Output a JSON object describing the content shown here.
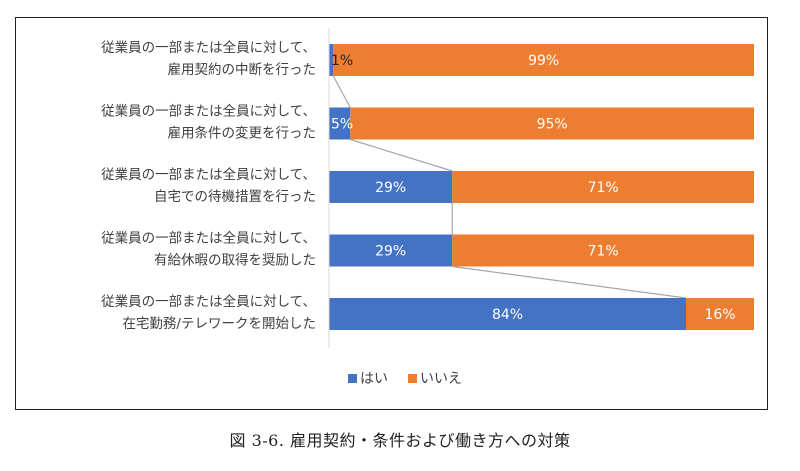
{
  "caption": "図 3-6.  雇用契約・条件および働き方への対策",
  "colors": {
    "yes": "#4472C4",
    "no": "#ED7D31",
    "connector": "#A6A6A6",
    "axis": "#D9D9D9"
  },
  "chart_data": {
    "type": "bar",
    "orientation": "horizontal",
    "stacked": "percent",
    "categories": [
      [
        "従業員の一部または全員に対して、",
        "雇用契約の中断を行った"
      ],
      [
        "従業員の一部または全員に対して、",
        "雇用条件の変更を行った"
      ],
      [
        "従業員の一部または全員に対して、",
        "自宅での待機措置を行った"
      ],
      [
        "従業員の一部または全員に対して、",
        "有給休暇の取得を奨励した"
      ],
      [
        "従業員の一部または全員に対して、",
        "在宅勤務/テレワークを開始した"
      ]
    ],
    "series": [
      {
        "name": "はい",
        "values": [
          1,
          5,
          29,
          29,
          84
        ],
        "labels": [
          "1%",
          "5%",
          "29%",
          "29%",
          "84%"
        ]
      },
      {
        "name": "いいえ",
        "values": [
          99,
          95,
          71,
          71,
          16
        ],
        "labels": [
          "99%",
          "95%",
          "71%",
          "71%",
          "16%"
        ]
      }
    ],
    "xlim": [
      0,
      100
    ],
    "series_lines": true,
    "legend_position": "bottom",
    "grid": false
  }
}
